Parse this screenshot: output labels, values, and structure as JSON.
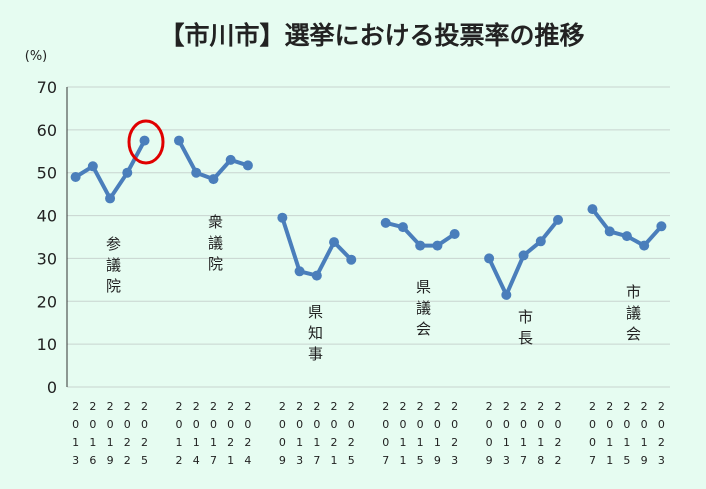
{
  "chart_data": {
    "type": "line",
    "title": "【市川市】選挙における投票率の推移",
    "y_unit_label": "(%)",
    "categories": [
      "2013",
      "2016",
      "2019",
      "2022",
      "2025",
      null,
      "2012",
      "2014",
      "2017",
      "2021",
      "2024",
      null,
      "2009",
      "2013",
      "2017",
      "2021",
      "2025",
      null,
      "2007",
      "2011",
      "2015",
      "2019",
      "2023",
      null,
      "2009",
      "2013",
      "2017",
      "2018",
      "2022",
      null,
      "2007",
      "2011",
      "2015",
      "2019",
      "2023"
    ],
    "series": [
      {
        "name": "投票率",
        "color": "#4a7ebb",
        "values": [
          49,
          51.5,
          44,
          50,
          57.5,
          null,
          57.5,
          50,
          48.5,
          53,
          51.7,
          null,
          39.5,
          27,
          26,
          33.8,
          29.7,
          null,
          38.3,
          37.3,
          33,
          33,
          35.7,
          null,
          30,
          21.5,
          30.7,
          34,
          39,
          null,
          41.5,
          36.3,
          35.2,
          33,
          37.5
        ]
      }
    ],
    "annotations": [
      "参議院",
      "衆議院",
      "県知事",
      "県議会",
      "市長",
      "市議会"
    ],
    "ylim": [
      0,
      70
    ],
    "yticks": [
      0,
      10,
      20,
      30,
      40,
      50,
      60,
      70
    ],
    "grid": true
  }
}
